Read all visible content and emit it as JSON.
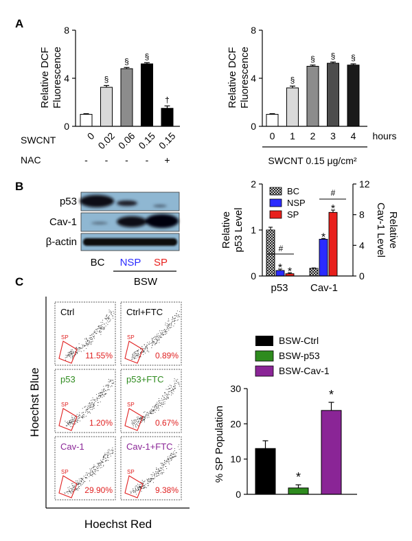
{
  "panel_labels": {
    "a": "A",
    "b": "B",
    "c": "C"
  },
  "colors": {
    "black": "#000000",
    "blue": "#2b2bff",
    "red": "#e8201c",
    "green": "#2e8b1e",
    "purple": "#8a2596",
    "sp_red": "#e02020",
    "blot_bg": "#8fb7d2"
  },
  "chart_data": [
    {
      "id": "A1",
      "type": "bar",
      "ylabel_lines": [
        "Relative DCF",
        "Fluorescence"
      ],
      "yticks": [
        0,
        4,
        8
      ],
      "ylim": [
        0,
        8
      ],
      "categories": [
        "0",
        "0.02",
        "0.06",
        "0.15",
        "0.15"
      ],
      "values": [
        1.0,
        3.25,
        4.8,
        5.2,
        1.5
      ],
      "errors": [
        0.05,
        0.15,
        0.1,
        0.1,
        0.2
      ],
      "fills": [
        "#ffffff",
        "#d9d9d9",
        "#8c8c8c",
        "#000000",
        "#000000"
      ],
      "marks": [
        "",
        "§",
        "§",
        "§",
        "†"
      ],
      "row_labels": {
        "swcnt": "SWCNT",
        "nac": "NAC"
      },
      "nac": [
        "-",
        "-",
        "-",
        "-",
        "+"
      ]
    },
    {
      "id": "A2",
      "type": "bar",
      "ylabel_lines": [
        "Relative DCF",
        "Fluorescence"
      ],
      "yticks": [
        0,
        4,
        8
      ],
      "ylim": [
        0,
        8
      ],
      "categories": [
        "0",
        "1",
        "2",
        "3",
        "4"
      ],
      "values": [
        1.0,
        3.2,
        5.0,
        5.25,
        5.1
      ],
      "errors": [
        0.05,
        0.15,
        0.1,
        0.1,
        0.1
      ],
      "fills": [
        "#ffffff",
        "#d9d9d9",
        "#8c8c8c",
        "#4d4d4d",
        "#1a1a1a"
      ],
      "marks": [
        "",
        "§",
        "§",
        "§",
        "§"
      ],
      "xunit": "hours",
      "xlabel": "SWCNT 0.15 μg/cm²"
    },
    {
      "id": "B",
      "type": "bar",
      "groups": [
        "p53",
        "Cav-1"
      ],
      "legend": [
        "BC",
        "NSP",
        "SP"
      ],
      "left_ylabel_lines": [
        "Relative",
        "p53 Level"
      ],
      "right_ylabel_lines": [
        "Relative",
        "Cav-1 Level"
      ],
      "left_yticks": [
        0,
        1,
        2
      ],
      "left_ylim": [
        0,
        2
      ],
      "right_yticks": [
        0,
        4,
        8,
        12
      ],
      "right_ylim": [
        0,
        12
      ],
      "p53_values": [
        1.0,
        0.12,
        0.05
      ],
      "p53_errors": [
        0.06,
        0.03,
        0.02
      ],
      "cav1_values": [
        1.0,
        4.8,
        8.3
      ],
      "cav1_errors": [
        0.05,
        0.1,
        0.3
      ],
      "p53_marks": [
        "",
        "*",
        "*"
      ],
      "cav1_marks": [
        "",
        "*",
        "*"
      ],
      "sig_mark": "#"
    },
    {
      "id": "C",
      "type": "bar",
      "ylabel": "% SP Population",
      "yticks": [
        0,
        10,
        20,
        30
      ],
      "ylim": [
        0,
        30
      ],
      "categories": [
        "BSW-Ctrl",
        "BSW-p53",
        "BSW-Cav-1"
      ],
      "values": [
        13.0,
        1.8,
        23.8
      ],
      "errors": [
        2.2,
        0.9,
        2.3
      ],
      "marks": [
        "",
        "*",
        "*"
      ]
    }
  ],
  "blot": {
    "rows": [
      "p53",
      "Cav-1",
      "β-actin"
    ],
    "lanes": [
      "BC",
      "NSP",
      "SP"
    ],
    "group_label": "BSW"
  },
  "flow": {
    "ylabel": "Hoechst Blue",
    "xlabel": "Hoechst Red",
    "gate_label": "SP",
    "panels": [
      {
        "name": "Ctrl",
        "pct": "11.55%"
      },
      {
        "name": "Ctrl+FTC",
        "pct": "0.89%"
      },
      {
        "name": "p53",
        "pct": "1.20%"
      },
      {
        "name": "p53+FTC",
        "pct": "0.67%"
      },
      {
        "name": "Cav-1",
        "pct": "29.90%"
      },
      {
        "name": "Cav-1+FTC",
        "pct": "9.38%"
      }
    ]
  }
}
